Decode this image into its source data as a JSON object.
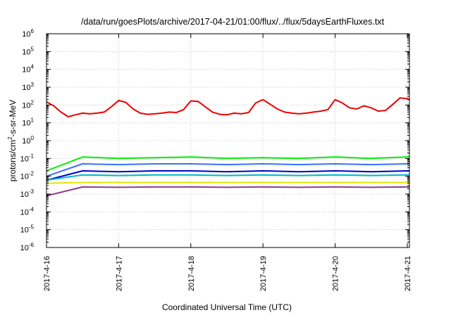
{
  "chart_data": {
    "type": "line",
    "title": "/data/run/goesPlots/archive/2017-04-21/01:00/flux/../flux/5daysEarthFluxes.txt",
    "xlabel": "Coordinated Universal Time (UTC)",
    "ylabel": {
      "base": "protons/cm",
      "sup": "2",
      "rest": "-s-sr-MeV"
    },
    "yscale": "log",
    "ylim_exp": [
      -6,
      6
    ],
    "yticks": [
      {
        "base": "10",
        "exp": "-6"
      },
      {
        "base": "10",
        "exp": "-5"
      },
      {
        "base": "10",
        "exp": "-4"
      },
      {
        "base": "10",
        "exp": "-3"
      },
      {
        "base": "10",
        "exp": "-2"
      },
      {
        "base": "10",
        "exp": "-1"
      },
      {
        "base": "10",
        "exp": "0"
      },
      {
        "base": "10",
        "exp": "1"
      },
      {
        "base": "10",
        "exp": "2"
      },
      {
        "base": "10",
        "exp": "3"
      },
      {
        "base": "10",
        "exp": "4"
      },
      {
        "base": "10",
        "exp": "5"
      },
      {
        "base": "10",
        "exp": "6"
      }
    ],
    "xticks": [
      "2017-4-16",
      "2017-4-17",
      "2017-4-18",
      "2017-4-19",
      "2017-4-20",
      "2017-4-21"
    ],
    "x_range_days": [
      0,
      5.03
    ],
    "grid": true,
    "series": [
      {
        "color": "#ee0000",
        "x": [
          0,
          0.1,
          0.2,
          0.3,
          0.4,
          0.5,
          0.6,
          0.7,
          0.8,
          0.9,
          1.0,
          1.1,
          1.2,
          1.3,
          1.4,
          1.5,
          1.6,
          1.7,
          1.8,
          1.9,
          2.0,
          2.1,
          2.2,
          2.3,
          2.4,
          2.5,
          2.6,
          2.7,
          2.8,
          2.9,
          3.0,
          3.1,
          3.2,
          3.3,
          3.4,
          3.5,
          3.6,
          3.7,
          3.8,
          3.9,
          4.0,
          4.1,
          4.2,
          4.3,
          4.4,
          4.5,
          4.6,
          4.7,
          4.8,
          4.9,
          5.0,
          5.03
        ],
        "y": [
          150,
          90,
          40,
          22,
          28,
          35,
          32,
          35,
          40,
          80,
          180,
          140,
          60,
          35,
          30,
          32,
          35,
          40,
          38,
          55,
          170,
          160,
          80,
          40,
          30,
          28,
          35,
          32,
          38,
          130,
          200,
          110,
          60,
          40,
          35,
          32,
          35,
          40,
          45,
          55,
          200,
          130,
          70,
          60,
          90,
          70,
          45,
          50,
          110,
          250,
          230,
          200
        ]
      },
      {
        "color": "#00ee00",
        "x": [
          0,
          0.5,
          1,
          1.5,
          2,
          2.5,
          3,
          3.5,
          4,
          4.5,
          5,
          5.03
        ],
        "y": [
          0.02,
          0.12,
          0.1,
          0.11,
          0.12,
          0.1,
          0.11,
          0.1,
          0.12,
          0.1,
          0.12,
          0.13
        ]
      },
      {
        "color": "#3a70ff",
        "x": [
          0,
          0.5,
          1,
          1.5,
          2,
          2.5,
          3,
          3.5,
          4,
          4.5,
          5,
          5.03
        ],
        "y": [
          0.01,
          0.05,
          0.045,
          0.05,
          0.05,
          0.045,
          0.05,
          0.045,
          0.05,
          0.045,
          0.05,
          0.05
        ]
      },
      {
        "color": "#0000cc",
        "x": [
          0,
          0.5,
          1,
          1.5,
          2,
          2.5,
          3,
          3.5,
          4,
          4.5,
          5,
          5.03
        ],
        "y": [
          0.006,
          0.02,
          0.018,
          0.02,
          0.02,
          0.018,
          0.02,
          0.018,
          0.02,
          0.018,
          0.02,
          0.02
        ]
      },
      {
        "color": "#00bbcc",
        "x": [
          0,
          0.5,
          1,
          1.5,
          2,
          2.5,
          3,
          3.5,
          4,
          4.5,
          5,
          5.03
        ],
        "y": [
          0.006,
          0.012,
          0.011,
          0.012,
          0.012,
          0.011,
          0.012,
          0.011,
          0.012,
          0.011,
          0.012,
          0.012
        ]
      },
      {
        "color": "#e6e600",
        "x": [
          0,
          0.5,
          1,
          1.5,
          2,
          2.5,
          3,
          3.5,
          4,
          4.5,
          5,
          5.03
        ],
        "y": [
          0.004,
          0.0045,
          0.0045,
          0.0045,
          0.0045,
          0.0045,
          0.0045,
          0.0045,
          0.0045,
          0.0045,
          0.0045,
          0.0045
        ]
      },
      {
        "color": "#8e3d8e",
        "x": [
          0,
          0.5,
          1,
          1.5,
          2,
          2.5,
          3,
          3.5,
          4,
          4.5,
          5,
          5.03
        ],
        "y": [
          0.0008,
          0.0025,
          0.0024,
          0.0025,
          0.0025,
          0.0024,
          0.0025,
          0.0024,
          0.0025,
          0.0024,
          0.0025,
          0.0025
        ]
      }
    ]
  }
}
